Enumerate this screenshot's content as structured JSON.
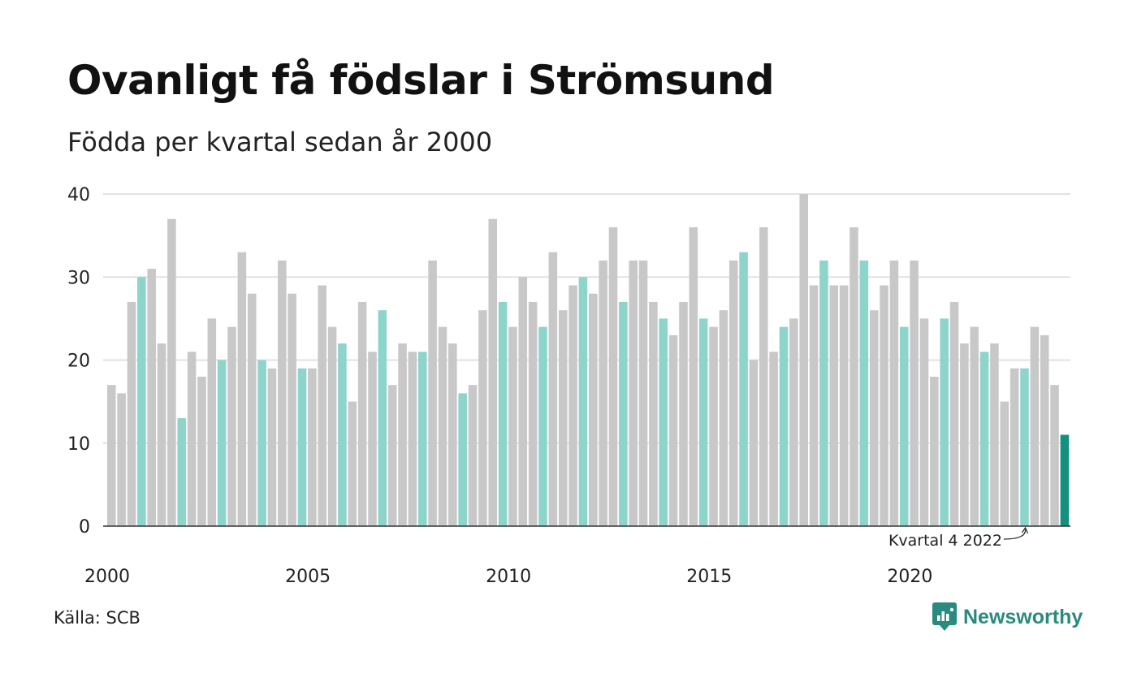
{
  "header": {
    "title": "Ovanligt få födslar i Strömsund",
    "subtitle": "Födda per kvartal sedan år 2000"
  },
  "footer": {
    "source": "Källa: SCB",
    "brand": "Newsworthy",
    "brand_icon": "bar-chart-speech-bubble-icon"
  },
  "colors": {
    "other_quarter": "#c8c8c8",
    "same_quarter": "#8dd4cb",
    "latest": "#13907e",
    "grid": "#e2e2e2",
    "axis": "#333333",
    "brand": "#2a8a7e"
  },
  "chart_data": {
    "type": "bar",
    "title": "Födda per kvartal sedan år 2000",
    "xlabel": "",
    "ylabel": "",
    "ylim": [
      0,
      40
    ],
    "yticks": [
      0,
      10,
      20,
      30,
      40
    ],
    "grid": true,
    "xtick_labels": [
      "2000",
      "2005",
      "2010",
      "2015",
      "2020"
    ],
    "annotation": {
      "text": "Kvartal 4 2022",
      "target_index": 91
    },
    "series": [
      {
        "values": [
          17,
          16,
          27,
          30,
          31,
          22,
          37,
          13,
          21,
          18,
          25,
          20,
          24,
          33,
          28,
          20,
          19,
          32,
          28,
          19,
          19,
          29,
          24,
          22,
          15,
          27,
          21,
          26,
          17,
          22,
          21,
          21,
          32,
          24,
          22,
          16,
          17,
          26,
          37,
          27,
          24,
          30,
          27,
          24,
          33,
          26,
          29,
          30,
          28,
          32,
          36,
          27,
          32,
          32,
          27,
          25,
          23,
          27,
          36,
          25,
          24,
          26,
          32,
          33,
          20,
          36,
          21,
          24,
          25,
          40,
          29,
          32,
          29,
          29,
          36,
          32,
          26,
          29,
          32,
          24,
          32,
          25,
          18,
          25,
          27,
          22,
          24,
          21,
          22,
          15,
          19,
          19,
          24,
          23,
          17,
          11
        ]
      }
    ],
    "highlight_quarter": 4,
    "start_year": 2000
  }
}
